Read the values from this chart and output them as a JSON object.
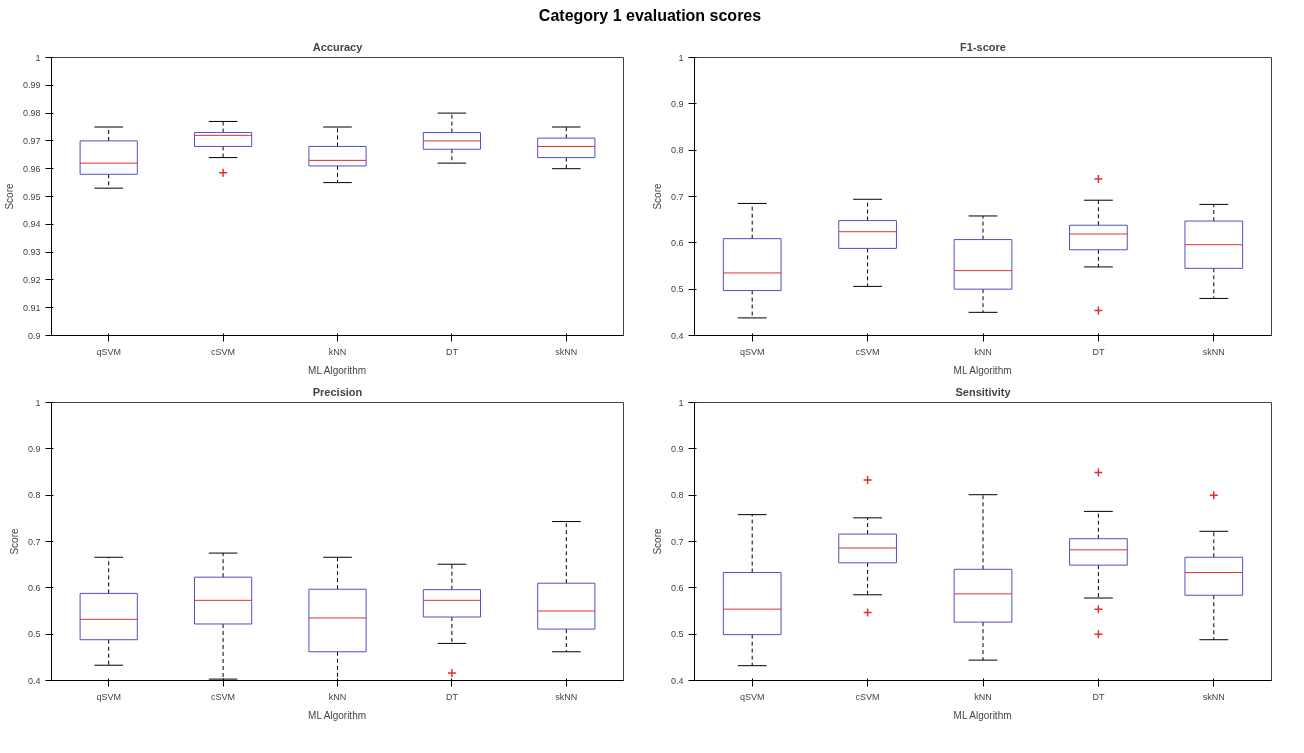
{
  "chart_data": [
    {
      "type": "box",
      "title": "Accuracy",
      "annotations": [
        "Category 1 evaluation scores"
      ],
      "xlabel": "ML Algorithm",
      "ylabel": "Score",
      "categories": [
        "qSVM",
        "cSVM",
        "kNN",
        "DT",
        "skNN"
      ],
      "ylim": [
        0.9,
        1
      ],
      "yticks": [
        0.9,
        0.91,
        0.92,
        0.93,
        0.94,
        0.95,
        0.96,
        0.97,
        0.98,
        0.99,
        1
      ],
      "color": "#5050c8",
      "boxes": [
        {
          "low": 0.953,
          "q1": 0.958,
          "median": 0.962,
          "q3": 0.97,
          "high": 0.975
        },
        {
          "low": 0.964,
          "q1": 0.968,
          "median": 0.972,
          "q3": 0.973,
          "high": 0.977,
          "outliers": [
            0.9585
          ]
        },
        {
          "low": 0.955,
          "q1": 0.961,
          "median": 0.963,
          "q3": 0.968,
          "high": 0.975
        },
        {
          "low": 0.962,
          "q1": 0.967,
          "median": 0.97,
          "q3": 0.973,
          "high": 0.98
        },
        {
          "low": 0.96,
          "q1": 0.964,
          "median": 0.968,
          "q3": 0.971,
          "high": 0.975
        }
      ]
    },
    {
      "type": "box",
      "title": "F1-score",
      "xlabel": "ML Algorithm",
      "ylabel": "Score",
      "categories": [
        "qSVM",
        "cSVM",
        "kNN",
        "DT",
        "skNN"
      ],
      "ylim": [
        0.4,
        1
      ],
      "yticks": [
        0.4,
        0.5,
        0.6,
        0.7,
        0.8,
        0.9,
        1
      ],
      "color": "#5050c8",
      "boxes": [
        {
          "low": 0.438,
          "q1": 0.497,
          "median": 0.535,
          "q3": 0.609,
          "high": 0.685
        },
        {
          "low": 0.506,
          "q1": 0.588,
          "median": 0.624,
          "q3": 0.648,
          "high": 0.694
        },
        {
          "low": 0.45,
          "q1": 0.5,
          "median": 0.54,
          "q3": 0.607,
          "high": 0.658
        },
        {
          "low": 0.548,
          "q1": 0.585,
          "median": 0.619,
          "q3": 0.638,
          "high": 0.692,
          "outliers": [
            0.738,
            0.454
          ]
        },
        {
          "low": 0.48,
          "q1": 0.545,
          "median": 0.596,
          "q3": 0.647,
          "high": 0.683
        }
      ]
    },
    {
      "type": "box",
      "title": "Precision",
      "xlabel": "ML Algorithm",
      "ylabel": "Score",
      "categories": [
        "qSVM",
        "cSVM",
        "kNN",
        "DT",
        "skNN"
      ],
      "ylim": [
        0.4,
        1
      ],
      "yticks": [
        0.4,
        0.5,
        0.6,
        0.7,
        0.8,
        0.9,
        1
      ],
      "color": "#5050c8",
      "boxes": [
        {
          "low": 0.433,
          "q1": 0.488,
          "median": 0.532,
          "q3": 0.588,
          "high": 0.666
        },
        {
          "low": 0.403,
          "q1": 0.522,
          "median": 0.573,
          "q3": 0.623,
          "high": 0.675
        },
        {
          "low": 0.4,
          "q1": 0.462,
          "median": 0.535,
          "q3": 0.597,
          "high": 0.666
        },
        {
          "low": 0.48,
          "q1": 0.537,
          "median": 0.573,
          "q3": 0.596,
          "high": 0.651,
          "outliers": [
            0.416
          ]
        },
        {
          "low": 0.462,
          "q1": 0.511,
          "median": 0.55,
          "q3": 0.61,
          "high": 0.743
        }
      ]
    },
    {
      "type": "box",
      "title": "Sensitivity",
      "xlabel": "ML Algorithm",
      "ylabel": "Score",
      "categories": [
        "qSVM",
        "cSVM",
        "kNN",
        "DT",
        "skNN"
      ],
      "ylim": [
        0.4,
        1
      ],
      "yticks": [
        0.4,
        0.5,
        0.6,
        0.7,
        0.8,
        0.9,
        1
      ],
      "color": "#5050c8",
      "boxes": [
        {
          "low": 0.432,
          "q1": 0.499,
          "median": 0.554,
          "q3": 0.633,
          "high": 0.758
        },
        {
          "low": 0.585,
          "q1": 0.654,
          "median": 0.686,
          "q3": 0.716,
          "high": 0.751,
          "outliers": [
            0.833,
            0.547
          ]
        },
        {
          "low": 0.444,
          "q1": 0.526,
          "median": 0.587,
          "q3": 0.64,
          "high": 0.801
        },
        {
          "low": 0.578,
          "q1": 0.649,
          "median": 0.682,
          "q3": 0.706,
          "high": 0.765,
          "outliers": [
            0.849,
            0.554,
            0.5
          ]
        },
        {
          "low": 0.488,
          "q1": 0.584,
          "median": 0.633,
          "q3": 0.666,
          "high": 0.722,
          "outliers": [
            0.8
          ]
        }
      ]
    }
  ]
}
